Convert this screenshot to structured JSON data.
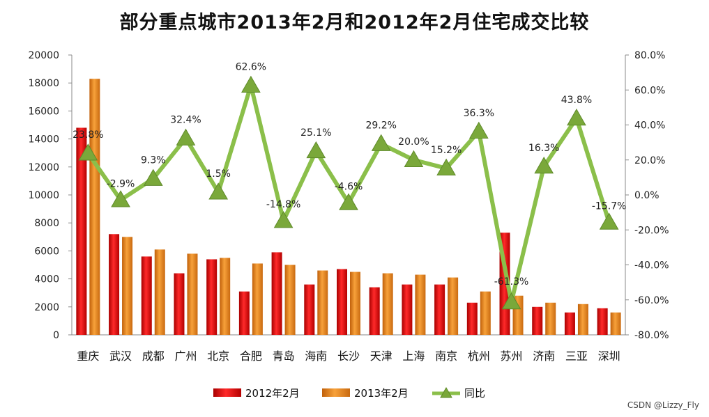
{
  "title": "部分重点城市2013年2月和2012年2月住宅成交比较",
  "watermark": "CSDN @Lizzy_Fly",
  "colors": {
    "series_2012": "#e41a1c",
    "series_2013": "#e8871e",
    "yoy_line": "#8bbf4a",
    "yoy_marker": "#7aa83a"
  },
  "chart_data": {
    "type": "bar",
    "categories": [
      "重庆",
      "武汉",
      "成都",
      "广州",
      "北京",
      "合肥",
      "青岛",
      "海南",
      "长沙",
      "天津",
      "上海",
      "南京",
      "杭州",
      "苏州",
      "济南",
      "三亚",
      "深圳"
    ],
    "series": [
      {
        "name": "2012年2月",
        "type": "bar",
        "axis": "left",
        "values": [
          14800,
          7200,
          5600,
          4400,
          5400,
          3100,
          5900,
          3600,
          4700,
          3400,
          3600,
          3600,
          2300,
          7300,
          2000,
          1600,
          1900
        ]
      },
      {
        "name": "2013年2月",
        "type": "bar",
        "axis": "left",
        "values": [
          18300,
          7000,
          6100,
          5800,
          5500,
          5100,
          5000,
          4600,
          4500,
          4400,
          4300,
          4100,
          3100,
          2800,
          2300,
          2200,
          1600
        ]
      },
      {
        "name": "同比",
        "type": "line",
        "axis": "right",
        "values": [
          23.8,
          -2.9,
          9.3,
          32.4,
          1.5,
          62.6,
          -14.8,
          25.1,
          -4.6,
          29.2,
          20.0,
          15.2,
          36.3,
          -61.3,
          16.3,
          43.8,
          -15.7
        ],
        "labels": [
          "23.8%",
          "-2.9%",
          "9.3%",
          "32.4%",
          "1.5%",
          "62.6%",
          "-14.8%",
          "25.1%",
          "-4.6%",
          "29.2%",
          "20.0%",
          "15.2%",
          "36.3%",
          "-61.3%",
          "16.3%",
          "43.8%",
          "-15.7%"
        ]
      }
    ],
    "y_left": {
      "min": 0,
      "max": 20000,
      "ticks": [
        "0",
        "2000",
        "4000",
        "6000",
        "8000",
        "10000",
        "12000",
        "14000",
        "16000",
        "18000",
        "20000"
      ]
    },
    "y_right": {
      "min": -80,
      "max": 80,
      "ticks": [
        "-80.0%",
        "-60.0%",
        "-40.0%",
        "-20.0%",
        "0.0%",
        "20.0%",
        "40.0%",
        "60.0%",
        "80.0%"
      ]
    },
    "legend": {
      "position": "bottom",
      "items": [
        "2012年2月",
        "2013年2月",
        "同比"
      ]
    },
    "grid": false
  }
}
